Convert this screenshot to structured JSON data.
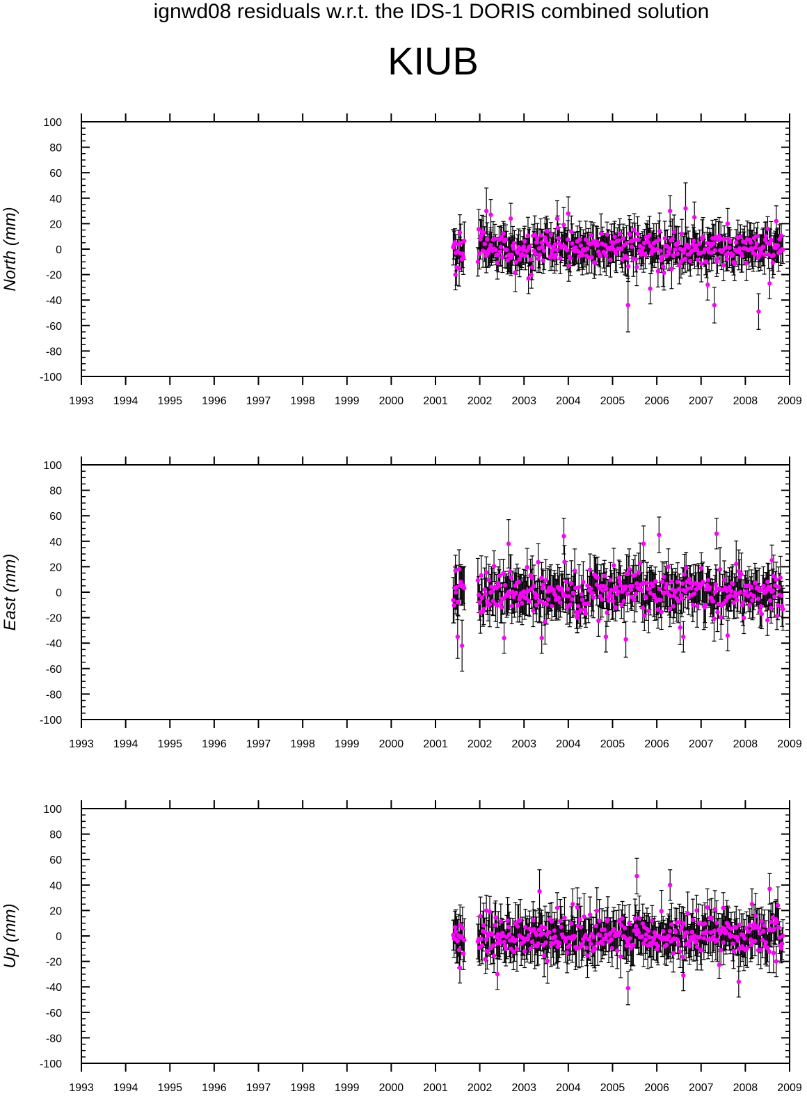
{
  "header": {
    "title": "ignwd08 residuals w.r.t. the IDS-1 DORIS combined solution",
    "station": "KIUB"
  },
  "colors": {
    "marker": "#ff00ff",
    "errorbar": "#000000",
    "axis": "#000000"
  },
  "chart_data": [
    {
      "type": "scatter",
      "name": "north",
      "ylabel": "North (mm)",
      "xlim": [
        1993,
        2009
      ],
      "ylim": [
        -100,
        100
      ],
      "xticks": [
        1993,
        1994,
        1995,
        1996,
        1997,
        1998,
        1999,
        2000,
        2001,
        2002,
        2003,
        2004,
        2005,
        2006,
        2007,
        2008,
        2009
      ],
      "yticks": [
        100,
        80,
        60,
        40,
        20,
        0,
        -20,
        -40,
        -60,
        -80,
        -100
      ],
      "grid": false,
      "data_span": [
        2001.4,
        2008.85
      ],
      "gap": [
        2001.65,
        2001.95
      ],
      "typical_sigma_mm": 12,
      "scatter_std_mm": 9,
      "outliers": [
        {
          "x": 2001.45,
          "y": -20,
          "err": 12
        },
        {
          "x": 2001.55,
          "y": 13,
          "err": 14
        },
        {
          "x": 2002.15,
          "y": 30,
          "err": 18
        },
        {
          "x": 2002.25,
          "y": 27,
          "err": 12
        },
        {
          "x": 2002.7,
          "y": 24,
          "err": 12
        },
        {
          "x": 2003.1,
          "y": -23,
          "err": 12
        },
        {
          "x": 2003.75,
          "y": 24,
          "err": 14
        },
        {
          "x": 2004.0,
          "y": 28,
          "err": 13
        },
        {
          "x": 2005.35,
          "y": -44,
          "err": 21
        },
        {
          "x": 2005.85,
          "y": -31,
          "err": 12
        },
        {
          "x": 2006.3,
          "y": 30,
          "err": 12
        },
        {
          "x": 2006.65,
          "y": 32,
          "err": 20
        },
        {
          "x": 2006.85,
          "y": 25,
          "err": 12
        },
        {
          "x": 2007.15,
          "y": -28,
          "err": 12
        },
        {
          "x": 2007.3,
          "y": -44,
          "err": 14
        },
        {
          "x": 2007.6,
          "y": 20,
          "err": 12
        },
        {
          "x": 2008.3,
          "y": -49,
          "err": 14
        },
        {
          "x": 2008.55,
          "y": -27,
          "err": 12
        },
        {
          "x": 2008.7,
          "y": 22,
          "err": 12
        }
      ]
    },
    {
      "type": "scatter",
      "name": "east",
      "ylabel": "East (mm)",
      "xlim": [
        1993,
        2009
      ],
      "ylim": [
        -100,
        100
      ],
      "xticks": [
        1993,
        1994,
        1995,
        1996,
        1997,
        1998,
        1999,
        2000,
        2001,
        2002,
        2003,
        2004,
        2005,
        2006,
        2007,
        2008,
        2009
      ],
      "yticks": [
        100,
        80,
        60,
        40,
        20,
        0,
        -20,
        -40,
        -60,
        -80,
        -100
      ],
      "grid": false,
      "data_span": [
        2001.4,
        2008.85
      ],
      "gap": [
        2001.65,
        2001.95
      ],
      "typical_sigma_mm": 14,
      "scatter_std_mm": 12,
      "outliers": [
        {
          "x": 2001.45,
          "y": 17,
          "err": 12
        },
        {
          "x": 2001.5,
          "y": -35,
          "err": 17
        },
        {
          "x": 2001.6,
          "y": -42,
          "err": 20
        },
        {
          "x": 2002.55,
          "y": -36,
          "err": 12
        },
        {
          "x": 2002.65,
          "y": 38,
          "err": 19
        },
        {
          "x": 2003.4,
          "y": -36,
          "err": 12
        },
        {
          "x": 2003.9,
          "y": 44,
          "err": 14
        },
        {
          "x": 2004.2,
          "y": -20,
          "err": 12
        },
        {
          "x": 2004.85,
          "y": -35,
          "err": 12
        },
        {
          "x": 2005.3,
          "y": -37,
          "err": 14
        },
        {
          "x": 2005.7,
          "y": 38,
          "err": 14
        },
        {
          "x": 2006.05,
          "y": 45,
          "err": 14
        },
        {
          "x": 2006.6,
          "y": -35,
          "err": 12
        },
        {
          "x": 2007.35,
          "y": 46,
          "err": 12
        },
        {
          "x": 2007.6,
          "y": -34,
          "err": 12
        },
        {
          "x": 2008.5,
          "y": -22,
          "err": 12
        },
        {
          "x": 2008.6,
          "y": 25,
          "err": 12
        }
      ]
    },
    {
      "type": "scatter",
      "name": "up",
      "ylabel": "Up (mm)",
      "xlim": [
        1993,
        2009
      ],
      "ylim": [
        -100,
        100
      ],
      "xticks": [
        1993,
        1994,
        1995,
        1996,
        1997,
        1998,
        1999,
        2000,
        2001,
        2002,
        2003,
        2004,
        2005,
        2006,
        2007,
        2008,
        2009
      ],
      "yticks": [
        100,
        80,
        60,
        40,
        20,
        0,
        -20,
        -40,
        -60,
        -80,
        -100
      ],
      "grid": false,
      "data_span": [
        2001.4,
        2008.85
      ],
      "gap": [
        2001.65,
        2001.95
      ],
      "typical_sigma_mm": 14,
      "scatter_std_mm": 10,
      "outliers": [
        {
          "x": 2001.55,
          "y": -25,
          "err": 12
        },
        {
          "x": 2002.15,
          "y": 20,
          "err": 12
        },
        {
          "x": 2002.4,
          "y": -30,
          "err": 12
        },
        {
          "x": 2003.35,
          "y": 35,
          "err": 17
        },
        {
          "x": 2003.75,
          "y": 22,
          "err": 12
        },
        {
          "x": 2004.1,
          "y": 25,
          "err": 12
        },
        {
          "x": 2005.35,
          "y": -41,
          "err": 13
        },
        {
          "x": 2005.55,
          "y": 47,
          "err": 14
        },
        {
          "x": 2006.3,
          "y": 40,
          "err": 12
        },
        {
          "x": 2006.6,
          "y": -31,
          "err": 12
        },
        {
          "x": 2006.9,
          "y": 20,
          "err": 12
        },
        {
          "x": 2007.5,
          "y": 22,
          "err": 12
        },
        {
          "x": 2007.85,
          "y": -36,
          "err": 12
        },
        {
          "x": 2008.15,
          "y": 25,
          "err": 12
        },
        {
          "x": 2008.55,
          "y": 37,
          "err": 12
        },
        {
          "x": 2008.7,
          "y": -20,
          "err": 12
        }
      ]
    }
  ]
}
